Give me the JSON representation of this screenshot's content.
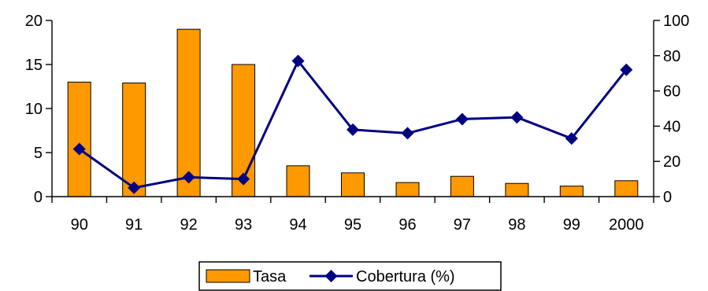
{
  "chart_data": {
    "type": "bar+line",
    "categories": [
      "90",
      "91",
      "92",
      "93",
      "94",
      "95",
      "96",
      "97",
      "98",
      "99",
      "2000"
    ],
    "series": [
      {
        "name": "Tasa",
        "type": "bar",
        "axis": "left",
        "color": "#FF9900",
        "values": [
          13,
          12.9,
          19,
          15,
          3.5,
          2.7,
          1.6,
          2.3,
          1.5,
          1.2,
          1.8
        ]
      },
      {
        "name": "Cobertura (%)",
        "type": "line",
        "axis": "right",
        "color": "#000080",
        "marker": "diamond",
        "values": [
          27,
          5,
          11,
          10,
          77,
          38,
          36,
          44,
          45,
          33,
          72
        ]
      }
    ],
    "y_left": {
      "min": 0,
      "max": 20,
      "ticks": [
        0,
        5,
        10,
        15,
        20
      ]
    },
    "y_right": {
      "min": 0,
      "max": 100,
      "ticks": [
        0,
        20,
        40,
        60,
        80,
        100
      ]
    },
    "grid": false,
    "legend_position": "bottom"
  }
}
